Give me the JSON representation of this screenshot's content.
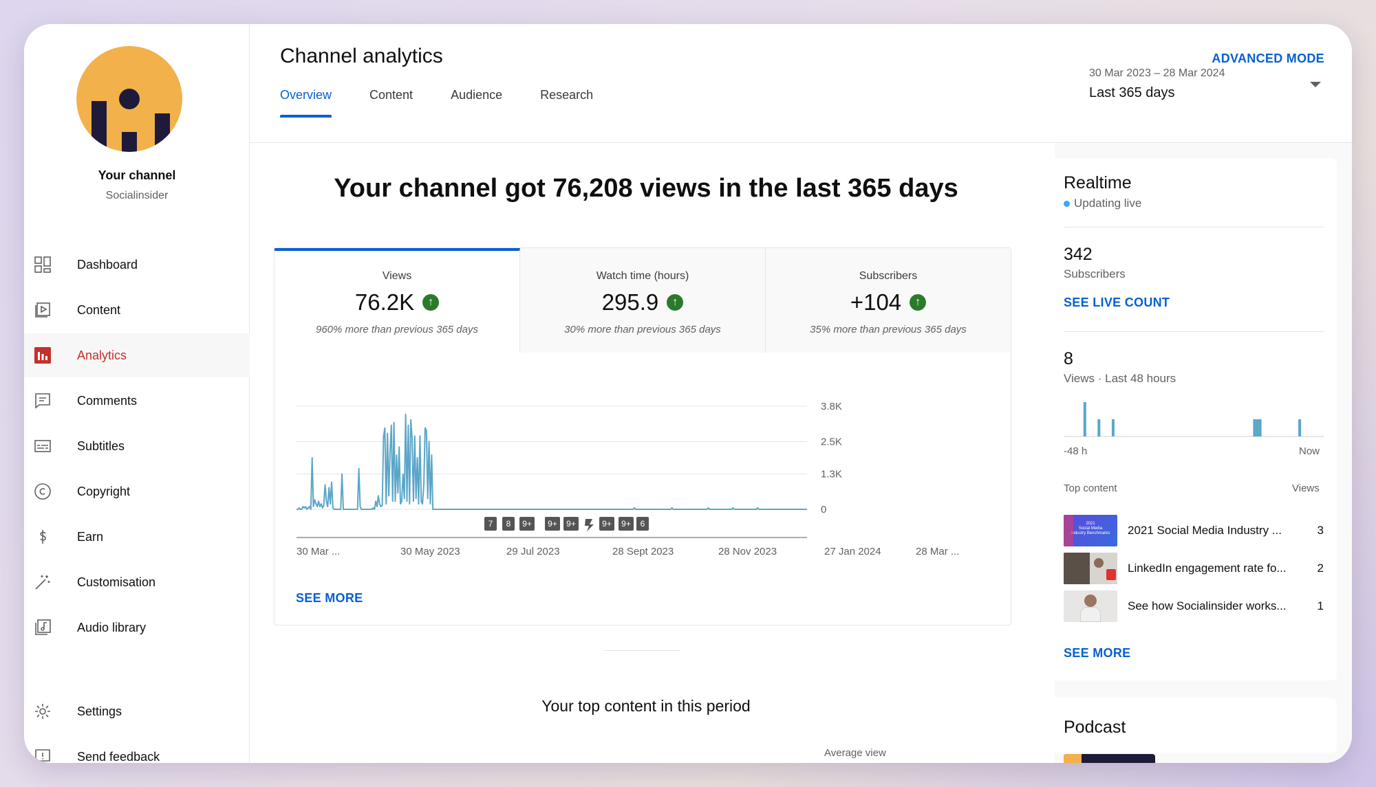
{
  "sidebar": {
    "channel_name": "Your channel",
    "channel_sub": "Socialinsider",
    "items": [
      {
        "label": "Dashboard",
        "icon": "dashboard-icon"
      },
      {
        "label": "Content",
        "icon": "content-icon"
      },
      {
        "label": "Analytics",
        "icon": "analytics-icon",
        "active": true
      },
      {
        "label": "Comments",
        "icon": "comments-icon"
      },
      {
        "label": "Subtitles",
        "icon": "subtitles-icon"
      },
      {
        "label": "Copyright",
        "icon": "copyright-icon"
      },
      {
        "label": "Earn",
        "icon": "earn-icon"
      },
      {
        "label": "Customisation",
        "icon": "customisation-icon"
      },
      {
        "label": "Audio library",
        "icon": "audio-library-icon"
      },
      {
        "label": "Settings",
        "icon": "settings-icon"
      },
      {
        "label": "Send feedback",
        "icon": "feedback-icon"
      }
    ]
  },
  "header": {
    "title": "Channel analytics",
    "advanced_mode": "ADVANCED MODE",
    "tabs": [
      "Overview",
      "Content",
      "Audience",
      "Research"
    ],
    "active_tab": "Overview",
    "date_range": "30 Mar 2023 – 28 Mar 2024",
    "range_label": "Last 365 days"
  },
  "main": {
    "headline": "Your channel got 76,208 views in the last 365 days",
    "metrics": [
      {
        "label": "Views",
        "value": "76.2K",
        "note": "960% more than previous 365 days"
      },
      {
        "label": "Watch time (hours)",
        "value": "295.9",
        "note": "30% more than previous 365 days"
      },
      {
        "label": "Subscribers",
        "value": "+104",
        "note": "35% more than previous 365 days"
      }
    ],
    "video_markers": [
      "7",
      "8",
      "9+",
      "9+",
      "9+",
      "9+",
      "9+",
      "6"
    ],
    "see_more": "SEE MORE",
    "top_content_title": "Your top content in this period",
    "average_view": "Average view"
  },
  "chart_data": {
    "type": "line",
    "title": "",
    "series": [
      {
        "values": [
          0,
          0,
          0.05,
          0,
          0,
          0.1,
          0.05,
          0.1,
          0,
          0.05,
          0.1,
          0,
          1.9,
          0.1,
          0.35,
          0.2,
          0.1,
          0.3,
          0.1,
          0.2,
          0.05,
          0.15,
          0.9,
          0.3,
          0.1,
          0.8,
          0.2,
          1.0,
          0.05,
          0,
          0,
          0,
          0,
          0,
          0,
          1.3,
          0,
          0,
          0,
          0,
          0,
          0,
          0,
          0,
          0,
          0,
          0,
          0,
          1.5,
          0.1,
          0,
          0,
          0,
          0,
          0,
          0,
          0,
          0,
          0,
          0.05,
          0,
          0.3,
          0.1,
          0.5,
          0.2,
          0.1,
          0.15,
          2.7,
          3.0,
          0.2,
          2.8,
          0.5,
          2.1,
          3.1,
          0.3,
          3.2,
          0.3,
          2.0,
          0.6,
          2.3,
          0.2,
          0.3,
          1.3,
          0.4,
          3.5,
          0.3,
          3.1,
          0.2,
          3.3,
          2.6,
          0.3,
          2.7,
          0.4,
          1.9,
          0.2,
          2.7,
          0.3,
          0.2,
          0.9,
          3.0,
          2.9,
          0.4,
          2.5,
          0.2,
          2.0,
          0,
          0,
          0,
          0,
          0,
          0,
          0,
          0,
          0,
          0,
          0,
          0,
          0,
          0,
          0,
          0,
          0,
          0,
          0,
          0,
          0,
          0,
          0,
          0,
          0,
          0,
          0,
          0,
          0,
          0,
          0,
          0,
          0,
          0,
          0,
          0,
          0,
          0,
          0,
          0,
          0,
          0,
          0,
          0,
          0,
          0,
          0,
          0,
          0,
          0,
          0,
          0,
          0,
          0,
          0,
          0,
          0,
          0,
          0,
          0,
          0,
          0,
          0,
          0,
          0,
          0,
          0,
          0,
          0,
          0,
          0,
          0,
          0,
          0,
          0,
          0,
          0,
          0,
          0,
          0,
          0,
          0,
          0,
          0,
          0,
          0,
          0,
          0,
          0,
          0,
          0,
          0,
          0,
          0,
          0,
          0,
          0,
          0,
          0,
          0,
          0,
          0,
          0,
          0,
          0,
          0,
          0,
          0,
          0,
          0,
          0,
          0,
          0,
          0,
          0,
          0,
          0,
          0,
          0,
          0,
          0,
          0,
          0,
          0,
          0,
          0,
          0,
          0,
          0,
          0,
          0,
          0,
          0,
          0,
          0,
          0,
          0,
          0,
          0,
          0,
          0,
          0,
          0,
          0,
          0,
          0,
          0,
          0,
          0,
          0,
          0,
          0,
          0,
          0,
          0,
          0.05,
          0,
          0,
          0,
          0,
          0,
          0,
          0,
          0,
          0,
          0,
          0,
          0,
          0,
          0,
          0,
          0,
          0,
          0,
          0,
          0,
          0,
          0,
          0,
          0,
          0,
          0,
          0,
          0,
          0.05,
          0,
          0,
          0,
          0,
          0,
          0,
          0,
          0,
          0,
          0,
          0,
          0,
          0,
          0,
          0,
          0,
          0,
          0,
          0,
          0,
          0,
          0,
          0,
          0,
          0,
          0,
          0,
          0.05,
          0,
          0,
          0,
          0,
          0,
          0,
          0,
          0,
          0,
          0,
          0,
          0,
          0,
          0,
          0,
          0,
          0,
          0,
          0.05,
          0,
          0,
          0,
          0,
          0,
          0,
          0,
          0,
          0,
          0,
          0,
          0,
          0,
          0,
          0,
          0,
          0,
          0,
          0.05,
          0,
          0,
          0,
          0,
          0,
          0,
          0,
          0,
          0,
          0,
          0,
          0,
          0,
          0,
          0,
          0,
          0,
          0,
          0,
          0,
          0,
          0,
          0,
          0,
          0,
          0,
          0,
          0,
          0,
          0,
          0,
          0,
          0,
          0,
          0,
          0,
          0,
          0
        ]
      }
    ],
    "x_tick_labels": [
      "30 Mar ...",
      "30 May 2023",
      "29 Jul 2023",
      "28 Sept 2023",
      "28 Nov 2023",
      "27 Jan 2024",
      "28 Mar ..."
    ],
    "y_tick_labels": [
      "3.8K",
      "2.5K",
      "1.3K",
      "0"
    ],
    "y_unit": "K views",
    "ylim": [
      0,
      3.8
    ],
    "color": "#5aa6c9"
  },
  "realtime": {
    "title": "Realtime",
    "status": "Updating live",
    "subscribers_count": "342",
    "subscribers_label": "Subscribers",
    "see_live_count": "SEE LIVE COUNT",
    "views_count": "8",
    "views_label": "Views · Last 48 hours",
    "axis_start": "-48 h",
    "axis_end": "Now",
    "bars": [
      0,
      0,
      0,
      0,
      0,
      0,
      0,
      1.0,
      0,
      0,
      0,
      0,
      0.5,
      0,
      0,
      0,
      0,
      0.5,
      0,
      0,
      0,
      0,
      0,
      0,
      0,
      0,
      0,
      0,
      0,
      0,
      0,
      0,
      0,
      0,
      0,
      0,
      0,
      0,
      0,
      0,
      0,
      0,
      0,
      0,
      0,
      0,
      0,
      0,
      0,
      0,
      0,
      0,
      0,
      0,
      0,
      0,
      0,
      0,
      0,
      0,
      0,
      0,
      0,
      0,
      0,
      0,
      0,
      0.5,
      0.5,
      0.5,
      0,
      0,
      0,
      0,
      0,
      0,
      0,
      0,
      0,
      0,
      0,
      0,
      0,
      0.5,
      0,
      0,
      0,
      0,
      0,
      0,
      0,
      0
    ],
    "top_content_header": "Top content",
    "views_header": "Views",
    "top_content": [
      {
        "title": "2021 Social Media Industry ...",
        "views": "3"
      },
      {
        "title": "LinkedIn engagement rate fo...",
        "views": "2"
      },
      {
        "title": "See how Socialinsider works...",
        "views": "1"
      }
    ],
    "see_more": "SEE MORE",
    "thumb_text": [
      "2021",
      "Social Media",
      "Industry Benchmarks"
    ]
  },
  "podcast": {
    "title": "Podcast"
  }
}
